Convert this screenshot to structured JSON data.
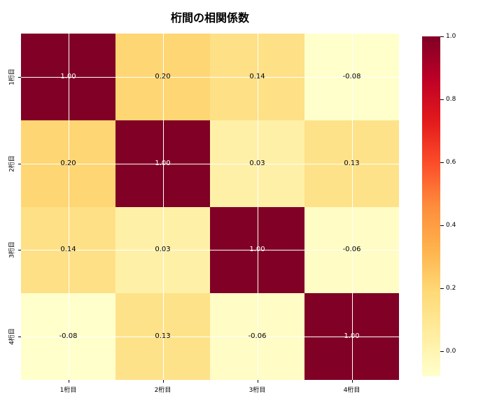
{
  "title": "桁間の相関係数",
  "chart_data": {
    "type": "heatmap",
    "title": "桁間の相関係数",
    "x_labels": [
      "1桁目",
      "2桁目",
      "3桁目",
      "4桁目"
    ],
    "y_labels": [
      "1桁目",
      "2桁目",
      "3桁目",
      "4桁目"
    ],
    "values": [
      [
        1.0,
        0.2,
        0.14,
        -0.08
      ],
      [
        0.2,
        1.0,
        0.03,
        0.13
      ],
      [
        0.14,
        0.03,
        1.0,
        -0.06
      ],
      [
        -0.08,
        0.13,
        -0.06,
        1.0
      ]
    ],
    "value_labels": [
      [
        "1.00",
        "0.20",
        "0.14",
        "-0.08"
      ],
      [
        "0.20",
        "1.00",
        "0.03",
        "0.13"
      ],
      [
        "0.14",
        "0.03",
        "1.00",
        "-0.06"
      ],
      [
        "-0.08",
        "0.13",
        "-0.06",
        "1.00"
      ]
    ],
    "cell_colors": [
      [
        "#800026",
        "#fed673",
        "#fee086",
        "#ffffcc"
      ],
      [
        "#fed673",
        "#800026",
        "#fff0a8",
        "#fee289"
      ],
      [
        "#fee086",
        "#fff0a8",
        "#800026",
        "#fffcc5"
      ],
      [
        "#ffffcc",
        "#fee289",
        "#fffcc5",
        "#800026"
      ]
    ],
    "text_colors": [
      [
        "#ffffff",
        "#000000",
        "#000000",
        "#000000"
      ],
      [
        "#000000",
        "#ffffff",
        "#000000",
        "#000000"
      ],
      [
        "#000000",
        "#000000",
        "#ffffff",
        "#000000"
      ],
      [
        "#000000",
        "#000000",
        "#000000",
        "#ffffff"
      ]
    ],
    "colormap": "YlOrRd",
    "vmin": -0.08,
    "vmax": 1.0,
    "grid": true,
    "grid_color": "#ffffff",
    "colorbar": {
      "ticks": [
        {
          "label": "1.0",
          "value": 1.0
        },
        {
          "label": "0.8",
          "value": 0.8
        },
        {
          "label": "0.6",
          "value": 0.6
        },
        {
          "label": "0.4",
          "value": 0.4
        },
        {
          "label": "0.2",
          "value": 0.2
        },
        {
          "label": "0.0",
          "value": 0.0
        }
      ],
      "gradient_stops": [
        "#ffffcc",
        "#ffeda0",
        "#fed976",
        "#feb24c",
        "#fd8d3c",
        "#fc4e2a",
        "#e31a1c",
        "#bd0026",
        "#800026"
      ]
    }
  }
}
